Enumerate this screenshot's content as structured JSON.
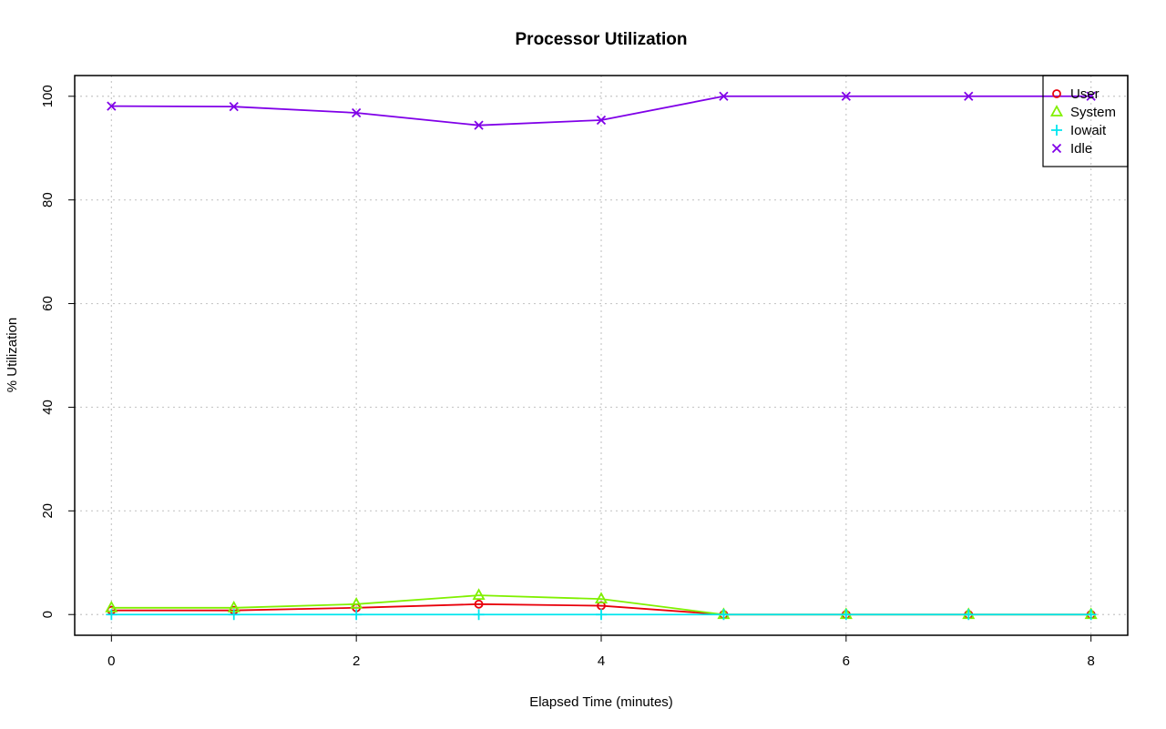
{
  "chart_data": {
    "type": "line",
    "title": "Processor Utilization",
    "xlabel": "Elapsed Time (minutes)",
    "ylabel": "% Utilization",
    "xlim": [
      -0.3,
      8.3
    ],
    "ylim": [
      -4,
      104
    ],
    "x_ticks": [
      0,
      2,
      4,
      6,
      8
    ],
    "y_ticks": [
      0,
      20,
      40,
      60,
      80,
      100
    ],
    "grid": true,
    "legend_position": "top-right",
    "x": [
      0,
      1,
      2,
      3,
      4,
      5,
      6,
      7,
      8
    ],
    "series": [
      {
        "name": "User",
        "color": "#e8000b",
        "marker": "circle",
        "values": [
          0.8,
          0.8,
          1.3,
          2.0,
          1.7,
          0,
          0,
          0,
          0
        ]
      },
      {
        "name": "System",
        "color": "#80f000",
        "marker": "triangle",
        "values": [
          1.3,
          1.3,
          2.0,
          3.7,
          3.0,
          0,
          0,
          0,
          0
        ]
      },
      {
        "name": "Iowait",
        "color": "#00e5ee",
        "marker": "plus",
        "values": [
          0,
          0,
          0,
          0,
          0,
          0,
          0,
          0,
          0
        ]
      },
      {
        "name": "Idle",
        "color": "#8000e8",
        "marker": "cross",
        "values": [
          98.1,
          98.0,
          96.8,
          94.4,
          95.4,
          100,
          100,
          100,
          100
        ]
      }
    ]
  }
}
